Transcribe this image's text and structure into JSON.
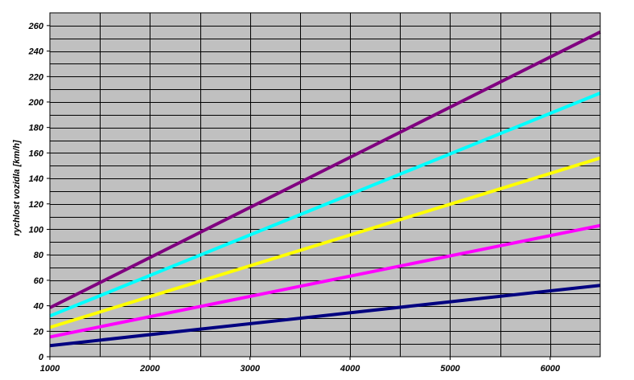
{
  "chart_data": {
    "type": "line",
    "title": "",
    "xlabel": "",
    "ylabel": "rychlost vozidla [km/h]",
    "xlim": [
      1000,
      6500
    ],
    "ylim": [
      0,
      270
    ],
    "x_ticks": [
      1000,
      2000,
      3000,
      4000,
      5000,
      6000
    ],
    "x_tick_labels": [
      "1000",
      "2000",
      "3000",
      "4000",
      "5000",
      "6000"
    ],
    "x_grid_step": 500,
    "y_ticks": [
      0,
      20,
      40,
      60,
      80,
      100,
      120,
      140,
      160,
      180,
      200,
      220,
      240,
      260
    ],
    "y_tick_labels": [
      "0",
      "20",
      "40",
      "60",
      "80",
      "100",
      "120",
      "140",
      "160",
      "180",
      "200",
      "220",
      "240",
      "260"
    ],
    "y_grid_step": 10,
    "grid": true,
    "plot_background": "#c0c0c0",
    "legend": "none",
    "series": [
      {
        "color": "#000080",
        "x": [
          1000,
          6500
        ],
        "y": [
          8.7,
          56.0
        ]
      },
      {
        "color": "#ff00ff",
        "x": [
          1000,
          6500
        ],
        "y": [
          15.5,
          103.0
        ]
      },
      {
        "color": "#ffff00",
        "x": [
          1000,
          6500
        ],
        "y": [
          23.0,
          156.0
        ]
      },
      {
        "color": "#00ffff",
        "x": [
          1000,
          6500
        ],
        "y": [
          32.0,
          207.0
        ]
      },
      {
        "color": "#800080",
        "x": [
          1000,
          6500
        ],
        "y": [
          38.5,
          255.0
        ]
      }
    ]
  }
}
